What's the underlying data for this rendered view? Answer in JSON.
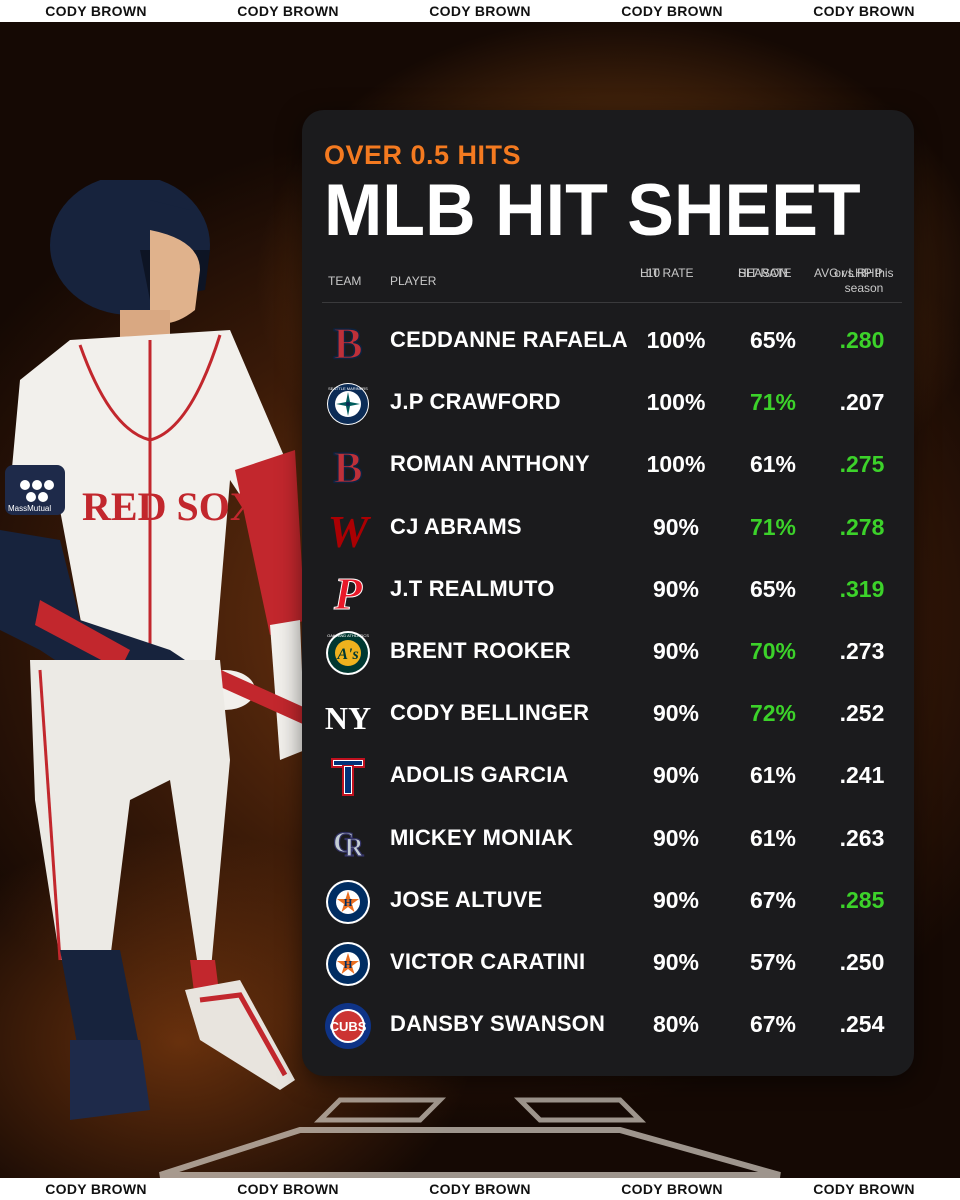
{
  "banner": {
    "text": "CODY BROWN"
  },
  "card": {
    "kicker": "OVER 0.5 HITS",
    "title": "MLB HIT SHEET",
    "headers": {
      "team": "TEAM",
      "player": "PLAYER",
      "l10_line1": "L10",
      "l10_line2": "HIT RATE",
      "season_line1": "SEASON",
      "season_line2": "HIT RATE",
      "avg_line1": "AVG vs RHP",
      "avg_line2": "or LHP this season"
    },
    "rows": [
      {
        "team_icon": "red-sox-logo-icon",
        "player": "CEDDANNE RAFAELA",
        "l10": "100%",
        "season": "65%",
        "avg": ".280",
        "season_highlight": false,
        "avg_highlight": true
      },
      {
        "team_icon": "mariners-logo-icon",
        "player": "J.P CRAWFORD",
        "l10": "100%",
        "season": "71%",
        "avg": ".207",
        "season_highlight": true,
        "avg_highlight": false
      },
      {
        "team_icon": "red-sox-logo-icon",
        "player": "ROMAN ANTHONY",
        "l10": "100%",
        "season": "61%",
        "avg": ".275",
        "season_highlight": false,
        "avg_highlight": true
      },
      {
        "team_icon": "nationals-logo-icon",
        "player": "CJ ABRAMS",
        "l10": "90%",
        "season": "71%",
        "avg": ".278",
        "season_highlight": true,
        "avg_highlight": true
      },
      {
        "team_icon": "phillies-logo-icon",
        "player": "J.T REALMUTO",
        "l10": "90%",
        "season": "65%",
        "avg": ".319",
        "season_highlight": false,
        "avg_highlight": true
      },
      {
        "team_icon": "athletics-logo-icon",
        "player": "BRENT ROOKER",
        "l10": "90%",
        "season": "70%",
        "avg": ".273",
        "season_highlight": true,
        "avg_highlight": false
      },
      {
        "team_icon": "yankees-logo-icon",
        "player": "CODY BELLINGER",
        "l10": "90%",
        "season": "72%",
        "avg": ".252",
        "season_highlight": true,
        "avg_highlight": false
      },
      {
        "team_icon": "rangers-logo-icon",
        "player": "ADOLIS GARCIA",
        "l10": "90%",
        "season": "61%",
        "avg": ".241",
        "season_highlight": false,
        "avg_highlight": false
      },
      {
        "team_icon": "rockies-logo-icon",
        "player": "MICKEY MONIAK",
        "l10": "90%",
        "season": "61%",
        "avg": ".263",
        "season_highlight": false,
        "avg_highlight": false
      },
      {
        "team_icon": "astros-logo-icon",
        "player": "JOSE ALTUVE",
        "l10": "90%",
        "season": "67%",
        "avg": ".285",
        "season_highlight": false,
        "avg_highlight": true
      },
      {
        "team_icon": "astros-logo-icon",
        "player": "VICTOR CARATINI",
        "l10": "90%",
        "season": "57%",
        "avg": ".250",
        "season_highlight": false,
        "avg_highlight": false
      },
      {
        "team_icon": "cubs-logo-icon",
        "player": "DANSBY SWANSON",
        "l10": "80%",
        "season": "67%",
        "avg": ".254",
        "season_highlight": false,
        "avg_highlight": false
      }
    ]
  },
  "logo_text": {
    "astros_ring": "HOUSTON ASTROS",
    "athletics_ring": "OAKLAND ATHLETICS",
    "mariners_ring": "SEATTLE MARINERS",
    "cubs": "CUBS",
    "jersey": "RED SOX",
    "sleeve_patch": "MassMutual"
  },
  "colors": {
    "accent_orange": "#f47a20",
    "highlight_green": "#3cd22a",
    "card_bg": "#1b1b1d"
  }
}
